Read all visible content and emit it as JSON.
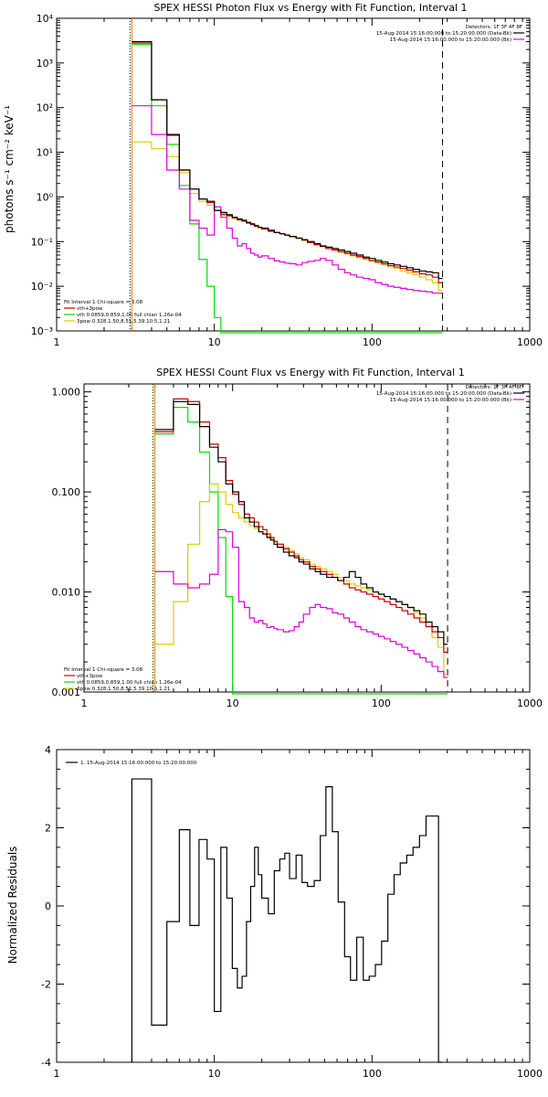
{
  "colors": {
    "black": "#000000",
    "red": "#cc0000",
    "green": "#00dd00",
    "yellow": "#ddcc00",
    "magenta": "#dd00dd",
    "orange": "#dd8800"
  },
  "chart_data": [
    {
      "type": "line",
      "title": "SPEX HESSI Photon Flux vs Energy with Fit Function, Interval 1",
      "ylabel": "photons s⁻¹ cm⁻² keV⁻¹",
      "xscale": "log",
      "yscale": "log",
      "xlim": [
        1,
        1000
      ],
      "ylim": [
        0.001,
        10000
      ],
      "x_ticks": [
        "1",
        "10",
        "100",
        "1000"
      ],
      "y_ticks": [
        "10⁻³",
        "10⁻²",
        "10⁻¹",
        "10⁰",
        "10¹",
        "10²",
        "10³",
        "10⁴"
      ],
      "header_lines": [
        "Detectors: 1F 3F 4F 8F",
        "15-Aug-2014 15:16:00.000 to 15:20:00.000 (Data-Bk)",
        "15-Aug-2014 15:16:00.000 to 15:20:00.000 (Bk)"
      ],
      "legend_lines": [
        "Fit Interval 1    Chi-square = 3.08",
        "vth+3pow",
        "vth 0.0859,0.859,1.00  full chian 1.26e-04",
        "3pow 0.328,1.50,8.51,5.39,10.5,1.21"
      ],
      "markers": [
        3,
        280
      ],
      "edges": [
        3,
        4,
        5,
        6,
        7,
        8,
        9,
        10,
        11,
        12,
        13,
        14,
        15,
        16,
        17,
        18,
        19,
        20,
        22,
        24,
        26,
        28,
        30,
        33,
        36,
        39,
        43,
        47,
        51,
        56,
        61,
        67,
        73,
        80,
        88,
        96,
        105,
        115,
        126,
        138,
        151,
        166,
        182,
        200,
        220,
        241,
        264,
        280
      ],
      "series": [
        {
          "color": "black",
          "values": [
            3000,
            150,
            25,
            4,
            1.5,
            0.9,
            0.8,
            0.5,
            0.45,
            0.4,
            0.35,
            0.32,
            0.3,
            0.27,
            0.25,
            0.23,
            0.21,
            0.2,
            0.18,
            0.16,
            0.15,
            0.14,
            0.13,
            0.12,
            0.11,
            0.1,
            0.09,
            0.08,
            0.075,
            0.07,
            0.065,
            0.06,
            0.055,
            0.05,
            0.045,
            0.042,
            0.038,
            0.035,
            0.032,
            0.03,
            0.028,
            0.026,
            0.024,
            0.022,
            0.021,
            0.02,
            0.015
          ]
        },
        {
          "color": "red",
          "values": [
            2800,
            150,
            24,
            4,
            1.5,
            0.9,
            0.75,
            0.5,
            0.4,
            0.38,
            0.34,
            0.31,
            0.29,
            0.26,
            0.24,
            0.22,
            0.21,
            0.19,
            0.17,
            0.16,
            0.15,
            0.14,
            0.13,
            0.12,
            0.11,
            0.095,
            0.085,
            0.078,
            0.07,
            0.065,
            0.06,
            0.055,
            0.05,
            0.046,
            0.042,
            0.038,
            0.035,
            0.032,
            0.029,
            0.027,
            0.025,
            0.023,
            0.021,
            0.019,
            0.018,
            0.016,
            0.012
          ]
        },
        {
          "color": "green",
          "values": [
            2600,
            110,
            15,
            1.8,
            0.25,
            0.04,
            0.01,
            0.002,
            0.0009,
            0.0009,
            0.0009,
            0.0009,
            0.0009,
            0.0009,
            0.0009,
            0.0009,
            0.0009,
            0.0009,
            0.0009,
            0.0009,
            0.0009,
            0.0009,
            0.0009,
            0.0009,
            0.0009,
            0.0009,
            0.0009,
            0.0009,
            0.0009,
            0.0009,
            0.0009,
            0.0009,
            0.0009,
            0.0009,
            0.0009,
            0.0009,
            0.0009,
            0.0009,
            0.0009,
            0.0009,
            0.0009,
            0.0009,
            0.0009,
            0.0009,
            0.0009,
            0.0009,
            0.0009
          ]
        },
        {
          "color": "yellow",
          "values": [
            17,
            12,
            8,
            3.5,
            1.2,
            0.8,
            0.65,
            0.5,
            0.42,
            0.37,
            0.33,
            0.3,
            0.28,
            0.26,
            0.24,
            0.22,
            0.2,
            0.19,
            0.17,
            0.16,
            0.15,
            0.14,
            0.13,
            0.115,
            0.105,
            0.095,
            0.085,
            0.077,
            0.07,
            0.064,
            0.058,
            0.053,
            0.048,
            0.044,
            0.04,
            0.036,
            0.033,
            0.03,
            0.027,
            0.025,
            0.022,
            0.02,
            0.018,
            0.016,
            0.014,
            0.012,
            0.008
          ]
        },
        {
          "color": "magenta",
          "values": [
            110,
            25,
            4,
            1.5,
            0.3,
            0.2,
            0.14,
            0.6,
            0.35,
            0.2,
            0.12,
            0.08,
            0.09,
            0.07,
            0.055,
            0.05,
            0.045,
            0.048,
            0.042,
            0.037,
            0.035,
            0.033,
            0.032,
            0.03,
            0.034,
            0.036,
            0.038,
            0.042,
            0.038,
            0.03,
            0.024,
            0.02,
            0.018,
            0.016,
            0.015,
            0.014,
            0.012,
            0.011,
            0.01,
            0.0095,
            0.009,
            0.0085,
            0.008,
            0.0078,
            0.0075,
            0.007,
            0.007
          ]
        }
      ]
    },
    {
      "type": "line",
      "title": "SPEX HESSI Count Flux vs Energy with Fit Function, Interval 1",
      "ylabel": "",
      "xscale": "log",
      "yscale": "log",
      "xlim": [
        1,
        1000
      ],
      "ylim": [
        0.001,
        1.2
      ],
      "x_ticks": [
        "1",
        "10",
        "100",
        "1000"
      ],
      "y_ticks": [
        "0.001",
        "0.010",
        "0.100",
        "1.000"
      ],
      "header_lines": [
        "Detectors: 1F 3F 4F 8F",
        "15-Aug-2014 15:16:00.000 to 15:20:00.000 (Data-Bk)",
        "15-Aug-2014 15:16:00.000 to 15:20:00.000 (Bk)"
      ],
      "legend_lines": [
        "Fit Interval 1    Chi-square = 3.08",
        "vth+3pow",
        "vth 0.0859,0.859,1.00  full chian 1.26e-04",
        "3pow 0.328,1.50,8.51,5.39,10.5,1.21"
      ],
      "markers": [
        3,
        280
      ],
      "edges": [
        3,
        4,
        5,
        6,
        7,
        8,
        9,
        10,
        11,
        12,
        13,
        14,
        15,
        16,
        17,
        18,
        19,
        20,
        22,
        24,
        26,
        28,
        30,
        33,
        36,
        39,
        43,
        47,
        51,
        56,
        61,
        67,
        73,
        80,
        88,
        96,
        105,
        115,
        126,
        138,
        151,
        166,
        182,
        200,
        220,
        241,
        264,
        280
      ],
      "series": [
        {
          "color": "black",
          "values": [
            0.42,
            0.8,
            0.75,
            0.45,
            0.28,
            0.2,
            0.12,
            0.1,
            0.08,
            0.055,
            0.05,
            0.045,
            0.04,
            0.038,
            0.035,
            0.033,
            0.03,
            0.028,
            0.025,
            0.023,
            0.022,
            0.02,
            0.019,
            0.017,
            0.016,
            0.015,
            0.014,
            0.014,
            0.013,
            0.014,
            0.016,
            0.014,
            0.012,
            0.011,
            0.01,
            0.0095,
            0.009,
            0.0085,
            0.008,
            0.0075,
            0.007,
            0.0065,
            0.006,
            0.005,
            0.0045,
            0.004,
            0.003
          ]
        },
        {
          "color": "red",
          "values": [
            0.4,
            0.85,
            0.8,
            0.5,
            0.3,
            0.22,
            0.13,
            0.095,
            0.075,
            0.06,
            0.055,
            0.05,
            0.045,
            0.042,
            0.038,
            0.035,
            0.032,
            0.03,
            0.027,
            0.025,
            0.023,
            0.021,
            0.02,
            0.018,
            0.017,
            0.016,
            0.015,
            0.014,
            0.013,
            0.012,
            0.011,
            0.0105,
            0.01,
            0.0095,
            0.009,
            0.0085,
            0.008,
            0.0075,
            0.007,
            0.0065,
            0.006,
            0.0055,
            0.005,
            0.0045,
            0.004,
            0.0035,
            0.0025
          ]
        },
        {
          "color": "green",
          "values": [
            0.38,
            0.7,
            0.5,
            0.25,
            0.1,
            0.035,
            0.009,
            0.0009,
            0.0009,
            0.0009,
            0.0009,
            0.0009,
            0.0009,
            0.0009,
            0.0009,
            0.0009,
            0.0009,
            0.0009,
            0.0009,
            0.0009,
            0.0009,
            0.0009,
            0.0009,
            0.0009,
            0.0009,
            0.0009,
            0.0009,
            0.0009,
            0.0009,
            0.0009,
            0.0009,
            0.0009,
            0.0009,
            0.0009,
            0.0009,
            0.0009,
            0.0009,
            0.0009,
            0.0009,
            0.0009,
            0.0009,
            0.0009,
            0.0009,
            0.0009,
            0.0009,
            0.0009,
            0.0009
          ]
        },
        {
          "color": "yellow",
          "values": [
            0.003,
            0.008,
            0.03,
            0.08,
            0.12,
            0.1,
            0.075,
            0.062,
            0.055,
            0.05,
            0.046,
            0.043,
            0.04,
            0.038,
            0.036,
            0.034,
            0.032,
            0.03,
            0.028,
            0.026,
            0.024,
            0.022,
            0.021,
            0.019,
            0.018,
            0.017,
            0.016,
            0.015,
            0.014,
            0.013,
            0.012,
            0.0115,
            0.011,
            0.0105,
            0.01,
            0.0095,
            0.009,
            0.0085,
            0.008,
            0.0075,
            0.007,
            0.0062,
            0.0055,
            0.0045,
            0.0035,
            0.0028,
            0.0015
          ]
        },
        {
          "color": "magenta",
          "values": [
            0.016,
            0.012,
            0.011,
            0.012,
            0.015,
            0.042,
            0.04,
            0.028,
            0.008,
            0.007,
            0.0055,
            0.005,
            0.0052,
            0.0048,
            0.0044,
            0.0045,
            0.0043,
            0.0042,
            0.004,
            0.0041,
            0.0045,
            0.005,
            0.006,
            0.007,
            0.0075,
            0.007,
            0.0068,
            0.0062,
            0.006,
            0.0055,
            0.005,
            0.0045,
            0.0042,
            0.004,
            0.0038,
            0.0036,
            0.0034,
            0.0032,
            0.003,
            0.0028,
            0.0026,
            0.0024,
            0.0022,
            0.002,
            0.0018,
            0.0016,
            0.0014
          ]
        }
      ]
    },
    {
      "type": "line",
      "title": "",
      "ylabel": "Normalized Residuals",
      "xscale": "log",
      "yscale": "linear",
      "xlim": [
        1,
        1000
      ],
      "ylim": [
        -4,
        4
      ],
      "x_ticks": [
        "1",
        "10",
        "100",
        "1000"
      ],
      "y_ticks": [
        "-4",
        "-2",
        "0",
        "2",
        "4"
      ],
      "header_lines": [],
      "legend_lines": [
        "1. 15-Aug-2014 15:16:00.000 to 15:20:00.000"
      ],
      "markers": [],
      "edges": [
        3,
        4,
        5,
        6,
        7,
        8,
        9,
        10,
        11,
        12,
        13,
        14,
        15,
        16,
        17,
        18,
        19,
        20,
        22,
        24,
        26,
        28,
        30,
        33,
        36,
        39,
        43,
        47,
        51,
        56,
        61,
        67,
        73,
        80,
        88,
        96,
        105,
        115,
        126,
        138,
        151,
        166,
        182,
        200,
        220,
        241,
        264,
        280
      ],
      "series": [
        {
          "color": "black",
          "values": [
            3.25,
            -3.05,
            -0.4,
            1.95,
            -0.5,
            1.7,
            1.2,
            -2.7,
            1.5,
            0.2,
            -1.6,
            -2.1,
            -1.8,
            -0.4,
            0.5,
            1.5,
            0.8,
            0.2,
            -0.2,
            0.9,
            1.2,
            1.35,
            0.7,
            1.3,
            0.6,
            0.5,
            0.65,
            1.8,
            3.05,
            1.9,
            0.1,
            -1.3,
            -1.9,
            -0.8,
            -1.9,
            -1.8,
            -1.5,
            -0.9,
            0.3,
            0.8,
            1.1,
            1.3,
            1.5,
            1.8,
            2.3,
            2.3,
            -4
          ]
        }
      ]
    }
  ]
}
